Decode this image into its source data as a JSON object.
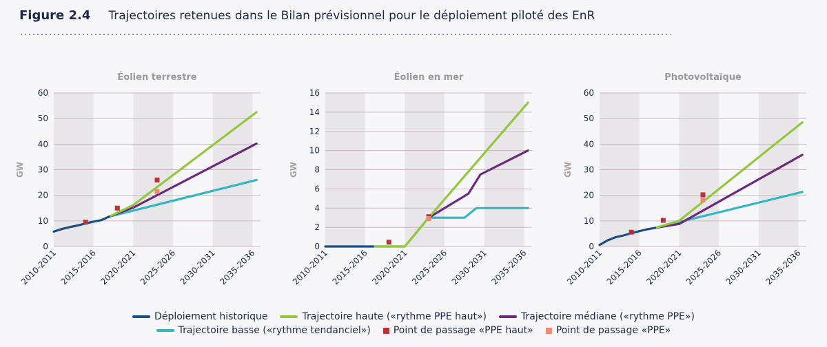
{
  "figure": {
    "number": "Figure 2.4",
    "title": "Trajectoires retenues dans le Bilan prévisionnel pour le déploiement piloté des EnR"
  },
  "colors": {
    "historique": "#1a4f86",
    "haute": "#93c83e",
    "mediane": "#6b2a7d",
    "basse": "#34b6c4",
    "ppe_haut": "#b8323a",
    "ppe": "#ef8a73",
    "band": "#e9e6ea"
  },
  "legend": [
    {
      "key": "historique",
      "kind": "line",
      "label": "Déploiement historique"
    },
    {
      "key": "haute",
      "kind": "line",
      "label": "Trajectoire haute («rythme PPE haut»)"
    },
    {
      "key": "mediane",
      "kind": "line",
      "label": "Trajectoire médiane («rythme PPE»)"
    },
    {
      "key": "basse",
      "kind": "line",
      "label": "Trajectoire basse («rythme tendanciel»)"
    },
    {
      "key": "ppe_haut",
      "kind": "square",
      "label": "Point de passage «PPE haut»"
    },
    {
      "key": "ppe",
      "kind": "square",
      "label": "Point de passage «PPE»"
    }
  ],
  "chart_data": [
    {
      "type": "line",
      "title": "Éolien terrestre",
      "ylabel": "GW",
      "ylim": [
        0,
        60
      ],
      "yticks": [
        0,
        10,
        20,
        30,
        40,
        50,
        60
      ],
      "xlim": [
        2010,
        2036
      ],
      "xticks": [
        "2010-2011",
        "2015-2016",
        "2020-2021",
        "2025-2026",
        "2030-2031",
        "2035-2036"
      ],
      "shaded_bands": [
        [
          2010,
          2015
        ],
        [
          2020,
          2025
        ],
        [
          2030,
          2035
        ]
      ],
      "series": [
        {
          "key": "historique",
          "name": "Déploiement historique",
          "x": [
            2010,
            2011,
            2012,
            2013,
            2014,
            2015,
            2016,
            2017
          ],
          "y": [
            5.8,
            6.8,
            7.6,
            8.2,
            9.0,
            9.7,
            10.3,
            11.7
          ]
        },
        {
          "key": "basse",
          "name": "Trajectoire basse («rythme tendanciel»)",
          "x": [
            2017,
            2035.5
          ],
          "y": [
            11.7,
            26
          ]
        },
        {
          "key": "mediane",
          "name": "Trajectoire médiane («rythme PPE»)",
          "x": [
            2017,
            2020,
            2035.5
          ],
          "y": [
            11.7,
            15.2,
            40.2
          ]
        },
        {
          "key": "haute",
          "name": "Trajectoire haute («rythme PPE haut»)",
          "x": [
            2017,
            2020,
            2035.5
          ],
          "y": [
            11.7,
            16.2,
            52.5
          ]
        }
      ],
      "markers": [
        {
          "key": "ppe_haut",
          "x": 2014,
          "y": 9.5
        },
        {
          "key": "ppe_haut",
          "x": 2018,
          "y": 15
        },
        {
          "key": "ppe_haut",
          "x": 2023,
          "y": 26
        },
        {
          "key": "ppe",
          "x": 2023,
          "y": 21.5
        }
      ]
    },
    {
      "type": "line",
      "title": "Éolien en mer",
      "ylabel": "GW",
      "ylim": [
        0,
        16
      ],
      "yticks": [
        0,
        2,
        4,
        6,
        8,
        10,
        12,
        14,
        16
      ],
      "xlim": [
        2010,
        2036
      ],
      "xticks": [
        "2010-2011",
        "2015-2016",
        "2020-2021",
        "2025-2026",
        "2030-2031",
        "2035-2036"
      ],
      "shaded_bands": [
        [
          2010,
          2015
        ],
        [
          2020,
          2025
        ],
        [
          2030,
          2035
        ]
      ],
      "series": [
        {
          "key": "historique",
          "name": "Déploiement historique",
          "x": [
            2010,
            2016
          ],
          "y": [
            0,
            0
          ]
        },
        {
          "key": "haute",
          "name": "Trajectoire haute («rythme PPE haut»)",
          "x": [
            2016,
            2020,
            2023,
            2035.5
          ],
          "y": [
            0,
            0,
            3,
            15
          ]
        },
        {
          "key": "mediane",
          "name": "Trajectoire médiane («rythme PPE»)",
          "x": [
            2023,
            2028,
            2029.5,
            2035.5
          ],
          "y": [
            3,
            5.5,
            7.5,
            10
          ]
        },
        {
          "key": "basse",
          "name": "Trajectoire basse («rythme tendanciel»)",
          "x": [
            2016,
            2020,
            2023,
            2027.5,
            2029,
            2035.5
          ],
          "y": [
            0,
            0,
            3,
            3,
            4,
            4
          ]
        }
      ],
      "markers": [
        {
          "key": "ppe_haut",
          "x": 2018,
          "y": 0.45
        },
        {
          "key": "ppe_haut",
          "x": 2023,
          "y": 3.1
        },
        {
          "key": "ppe",
          "x": 2023,
          "y": 2.9
        }
      ]
    },
    {
      "type": "line",
      "title": "Photovoltaïque",
      "ylabel": "GW",
      "ylim": [
        0,
        60
      ],
      "yticks": [
        0,
        10,
        20,
        30,
        40,
        50,
        60
      ],
      "xlim": [
        2010,
        2036
      ],
      "xticks": [
        "2010-2011",
        "2015-2016",
        "2020-2021",
        "2025-2026",
        "2030-2031",
        "2035-2036"
      ],
      "shaded_bands": [
        [
          2010,
          2015
        ],
        [
          2020,
          2025
        ],
        [
          2030,
          2035
        ]
      ],
      "series": [
        {
          "key": "historique",
          "name": "Déploiement historique",
          "x": [
            2010,
            2011,
            2012,
            2013,
            2014,
            2015,
            2016,
            2017
          ],
          "y": [
            0.6,
            2.4,
            3.6,
            4.3,
            5.2,
            6.0,
            6.7,
            7.3
          ]
        },
        {
          "key": "basse",
          "name": "Trajectoire basse («rythme tendanciel»)",
          "x": [
            2017,
            2035.5
          ],
          "y": [
            7.3,
            21.3
          ]
        },
        {
          "key": "mediane",
          "name": "Trajectoire médiane («rythme PPE»)",
          "x": [
            2017,
            2020,
            2035.5
          ],
          "y": [
            7.3,
            8.8,
            35.8
          ]
        },
        {
          "key": "haute",
          "name": "Trajectoire haute («rythme PPE haut»)",
          "x": [
            2017,
            2020,
            2035.5
          ],
          "y": [
            7.3,
            10,
            48.5
          ]
        }
      ],
      "markers": [
        {
          "key": "ppe_haut",
          "x": 2014,
          "y": 5.6
        },
        {
          "key": "ppe_haut",
          "x": 2018,
          "y": 10.2
        },
        {
          "key": "ppe_haut",
          "x": 2023,
          "y": 20.2
        },
        {
          "key": "ppe",
          "x": 2023,
          "y": 18.2
        }
      ]
    }
  ]
}
